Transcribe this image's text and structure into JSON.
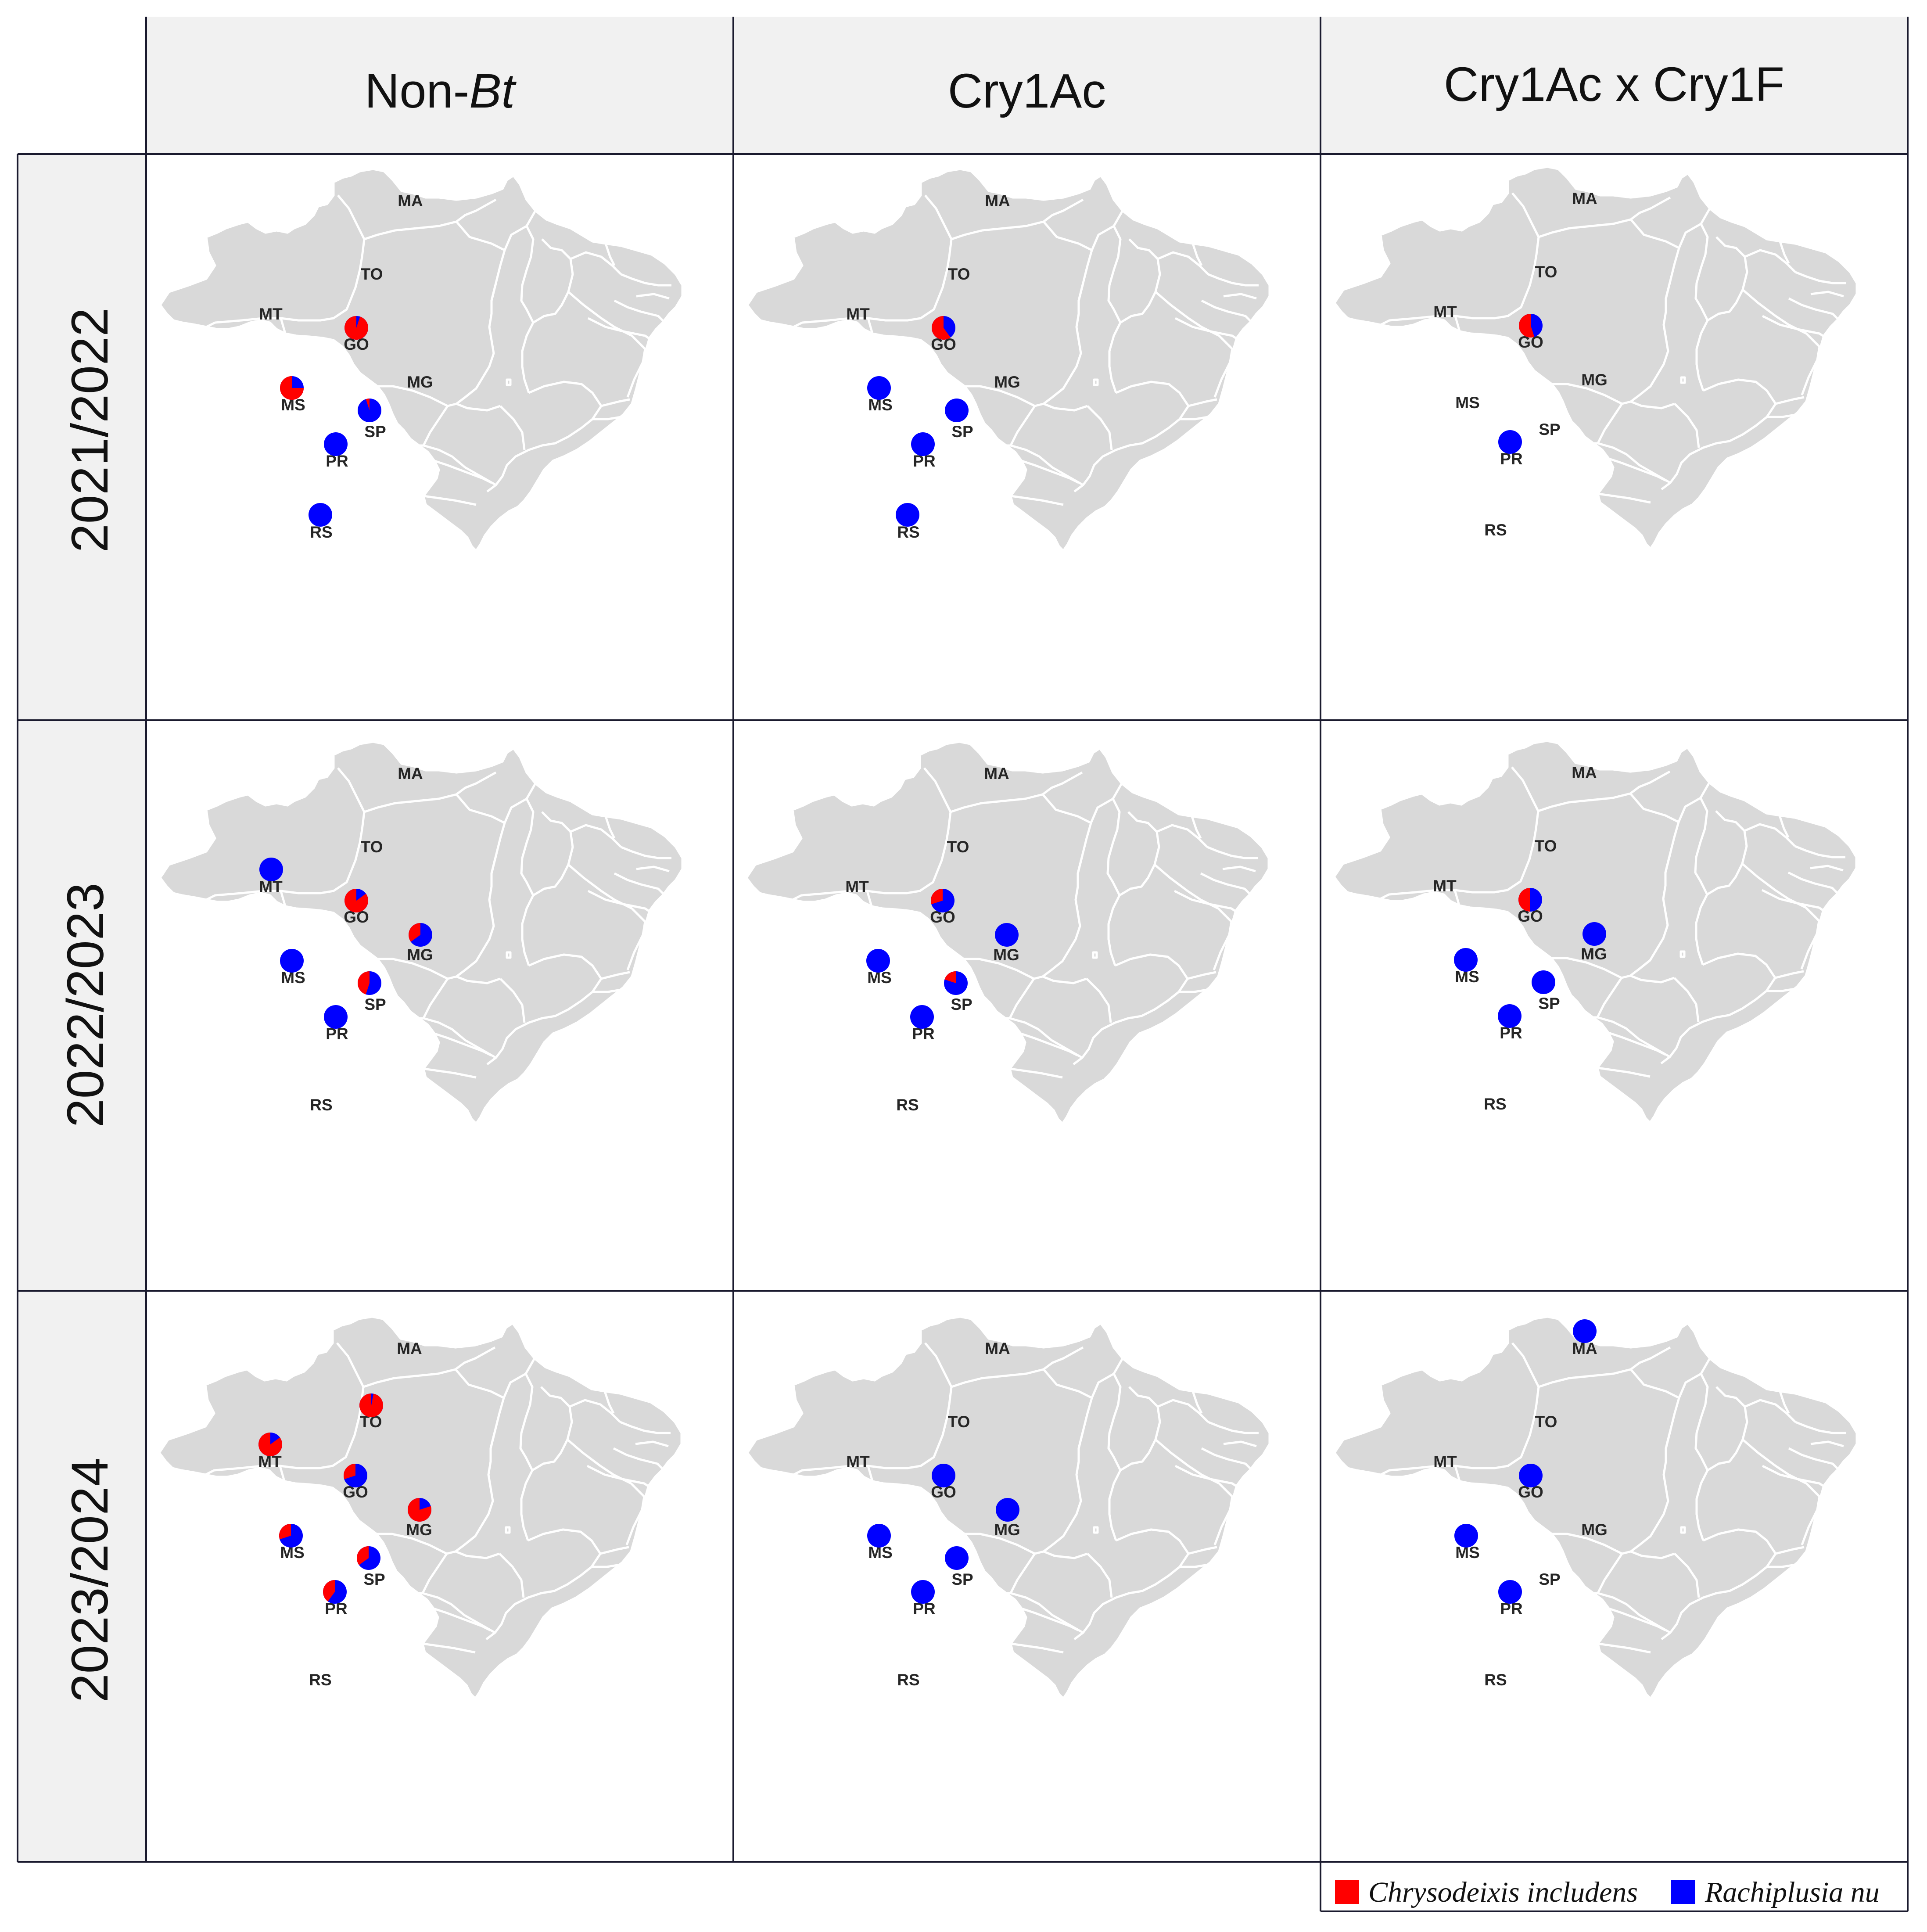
{
  "colors": {
    "chrysodeixis": "#ff0000",
    "rachiplusia": "#0000ff",
    "map_fill": "#d9d9d9",
    "header_bg": "#f1f1f1"
  },
  "columns": [
    {
      "label_prefix": "Non-",
      "label_italic": "Bt"
    },
    {
      "label_prefix": "Cry1Ac",
      "label_italic": ""
    },
    {
      "label_prefix": "Cry1Ac x Cry1F",
      "label_italic": ""
    }
  ],
  "rows": [
    "2021/2022",
    "2022/2023",
    "2023/2024"
  ],
  "legend": [
    {
      "label": "Chrysodeixis includens",
      "color": "#ff0000"
    },
    {
      "label": "Rachiplusia nu",
      "color": "#0000ff"
    }
  ],
  "state_labels": [
    "MA",
    "TO",
    "MT",
    "GO",
    "MG",
    "MS",
    "SP",
    "PR",
    "RS"
  ],
  "panels": [
    {
      "row": "2021/2022",
      "column": "Non-Bt",
      "pies": [
        {
          "state": "GO",
          "chrysodeixis_fraction": 0.95
        },
        {
          "state": "MS",
          "chrysodeixis_fraction": 0.75
        },
        {
          "state": "SP",
          "chrysodeixis_fraction": 0.05
        },
        {
          "state": "PR",
          "chrysodeixis_fraction": 0
        },
        {
          "state": "RS",
          "chrysodeixis_fraction": 0
        }
      ]
    },
    {
      "row": "2021/2022",
      "column": "Cry1Ac",
      "pies": [
        {
          "state": "GO",
          "chrysodeixis_fraction": 0.6
        },
        {
          "state": "MS",
          "chrysodeixis_fraction": 0
        },
        {
          "state": "SP",
          "chrysodeixis_fraction": 0
        },
        {
          "state": "PR",
          "chrysodeixis_fraction": 0
        },
        {
          "state": "RS",
          "chrysodeixis_fraction": 0
        }
      ]
    },
    {
      "row": "2021/2022",
      "column": "Cry1Ac x Cry1F",
      "pies": [
        {
          "state": "GO",
          "chrysodeixis_fraction": 0.55
        },
        {
          "state": "PR",
          "chrysodeixis_fraction": 0
        }
      ]
    },
    {
      "row": "2022/2023",
      "column": "Non-Bt",
      "pies": [
        {
          "state": "MT",
          "chrysodeixis_fraction": 0
        },
        {
          "state": "GO",
          "chrysodeixis_fraction": 0.85
        },
        {
          "state": "MG",
          "chrysodeixis_fraction": 0.35
        },
        {
          "state": "MS",
          "chrysodeixis_fraction": 0
        },
        {
          "state": "SP",
          "chrysodeixis_fraction": 0.45
        },
        {
          "state": "PR",
          "chrysodeixis_fraction": 0
        }
      ]
    },
    {
      "row": "2022/2023",
      "column": "Cry1Ac",
      "pies": [
        {
          "state": "GO",
          "chrysodeixis_fraction": 0.3
        },
        {
          "state": "MG",
          "chrysodeixis_fraction": 0
        },
        {
          "state": "MS",
          "chrysodeixis_fraction": 0
        },
        {
          "state": "SP",
          "chrysodeixis_fraction": 0.2
        },
        {
          "state": "PR",
          "chrysodeixis_fraction": 0
        }
      ]
    },
    {
      "row": "2022/2023",
      "column": "Cry1Ac x Cry1F",
      "pies": [
        {
          "state": "GO",
          "chrysodeixis_fraction": 0.5
        },
        {
          "state": "MG",
          "chrysodeixis_fraction": 0
        },
        {
          "state": "MS",
          "chrysodeixis_fraction": 0
        },
        {
          "state": "SP",
          "chrysodeixis_fraction": 0
        },
        {
          "state": "PR",
          "chrysodeixis_fraction": 0
        }
      ]
    },
    {
      "row": "2023/2024",
      "column": "Non-Bt",
      "pies": [
        {
          "state": "TO",
          "chrysodeixis_fraction": 0.97
        },
        {
          "state": "MT",
          "chrysodeixis_fraction": 0.85
        },
        {
          "state": "GO",
          "chrysodeixis_fraction": 0.3
        },
        {
          "state": "MG",
          "chrysodeixis_fraction": 0.8
        },
        {
          "state": "MS",
          "chrysodeixis_fraction": 0.3
        },
        {
          "state": "SP",
          "chrysodeixis_fraction": 0.35
        },
        {
          "state": "PR",
          "chrysodeixis_fraction": 0.4
        }
      ]
    },
    {
      "row": "2023/2024",
      "column": "Cry1Ac",
      "pies": [
        {
          "state": "GO",
          "chrysodeixis_fraction": 0
        },
        {
          "state": "MG",
          "chrysodeixis_fraction": 0
        },
        {
          "state": "MS",
          "chrysodeixis_fraction": 0
        },
        {
          "state": "SP",
          "chrysodeixis_fraction": 0
        },
        {
          "state": "PR",
          "chrysodeixis_fraction": 0
        }
      ]
    },
    {
      "row": "2023/2024",
      "column": "Cry1Ac x Cry1F",
      "pies": [
        {
          "state": "MA",
          "chrysodeixis_fraction": 0
        },
        {
          "state": "GO",
          "chrysodeixis_fraction": 0
        },
        {
          "state": "MS",
          "chrysodeixis_fraction": 0
        },
        {
          "state": "PR",
          "chrysodeixis_fraction": 0
        }
      ]
    }
  ]
}
